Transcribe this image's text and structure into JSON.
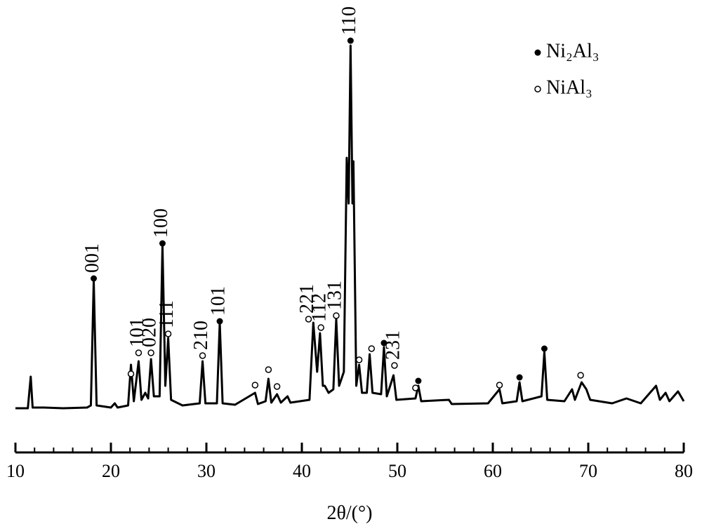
{
  "chart_data": {
    "type": "line",
    "xlabel": "2θ/(°)",
    "color": "#000000",
    "xlim": [
      10,
      80
    ],
    "xticks": [
      10,
      20,
      30,
      40,
      50,
      60,
      70,
      80
    ],
    "xminorticks": [
      12,
      14,
      16,
      18,
      22,
      24,
      26,
      28,
      32,
      34,
      36,
      38,
      42,
      44,
      46,
      48,
      52,
      54,
      56,
      58,
      62,
      64,
      66,
      68,
      72,
      74,
      76,
      78
    ],
    "ylim": [
      0,
      560
    ],
    "legend": "upper right",
    "x": [
      10.0,
      11.3,
      11.6,
      11.8,
      13,
      15,
      17.5,
      17.9,
      18.2,
      18.5,
      20,
      20.4,
      20.7,
      21.8,
      22.1,
      22.4,
      22.9,
      23.2,
      23.6,
      23.9,
      24.2,
      24.5,
      25.1,
      25.4,
      25.7,
      26.0,
      26.3,
      27.5,
      29.3,
      29.6,
      29.9,
      31.1,
      31.4,
      31.7,
      33,
      35.1,
      35.4,
      36.2,
      36.5,
      36.8,
      37.4,
      37.8,
      38.5,
      38.8,
      40.8,
      41.2,
      41.6,
      41.9,
      42.2,
      42.4,
      42.8,
      43.3,
      43.6,
      43.9,
      44.4,
      44.7,
      44.9,
      45.1,
      45.3,
      45.4,
      45.7,
      46.0,
      46.3,
      46.8,
      47.1,
      47.4,
      48.3,
      48.6,
      48.9,
      49.6,
      49.9,
      51.9,
      52.2,
      52.5,
      55.4,
      55.7,
      59.5,
      60.7,
      61,
      62.5,
      62.8,
      63.1,
      65.1,
      65.4,
      65.7,
      67.5,
      68.3,
      68.6,
      69.3,
      69.8,
      70.2,
      72.5,
      74,
      75.5,
      77.1,
      77.5,
      78.1,
      78.5,
      79.4,
      80.0
    ],
    "values": [
      8,
      8,
      53,
      9,
      9,
      8,
      9,
      12,
      190,
      12,
      9,
      15,
      9,
      12,
      70,
      18,
      75,
      20,
      30,
      22,
      78,
      25,
      25,
      240,
      40,
      108,
      20,
      12,
      15,
      75,
      15,
      15,
      130,
      15,
      13,
      30,
      14,
      18,
      50,
      16,
      28,
      16,
      25,
      16,
      20,
      130,
      60,
      115,
      40,
      40,
      30,
      35,
      135,
      40,
      60,
      365,
      300,
      525,
      300,
      360,
      40,
      70,
      30,
      30,
      85,
      30,
      28,
      95,
      25,
      55,
      20,
      22,
      40,
      18,
      20,
      14,
      15,
      35,
      15,
      18,
      45,
      18,
      25,
      88,
      20,
      18,
      35,
      20,
      45,
      35,
      20,
      15,
      22,
      15,
      40,
      20,
      30,
      18,
      32,
      18
    ],
    "phases": [
      {
        "name": "Ni₂Al₃",
        "marker": "filled",
        "peaks": [
          {
            "x": 18.2,
            "y": 193,
            "label": "001"
          },
          {
            "x": 25.4,
            "y": 243,
            "label": "100"
          },
          {
            "x": 31.4,
            "y": 132,
            "label": "101"
          },
          {
            "x": 45.1,
            "y": 532,
            "label": "110"
          },
          {
            "x": 48.6,
            "y": 101
          },
          {
            "x": 52.2,
            "y": 47
          },
          {
            "x": 62.8,
            "y": 52
          },
          {
            "x": 65.4,
            "y": 93
          }
        ]
      },
      {
        "name": "NiAl₃",
        "marker": "open",
        "peaks": [
          {
            "x": 22.1,
            "y": 57
          },
          {
            "x": 22.9,
            "y": 87,
            "label": "101"
          },
          {
            "x": 24.2,
            "y": 87,
            "label": "020"
          },
          {
            "x": 26.0,
            "y": 114,
            "label": "111"
          },
          {
            "x": 29.6,
            "y": 83,
            "label": "210"
          },
          {
            "x": 35.1,
            "y": 41
          },
          {
            "x": 36.5,
            "y": 63
          },
          {
            "x": 37.4,
            "y": 39
          },
          {
            "x": 40.7,
            "y": 135,
            "label": "221"
          },
          {
            "x": 42.0,
            "y": 123,
            "label": "112"
          },
          {
            "x": 43.6,
            "y": 140,
            "label": "131"
          },
          {
            "x": 46.0,
            "y": 77
          },
          {
            "x": 47.3,
            "y": 93
          },
          {
            "x": 49.7,
            "y": 69,
            "label": "231"
          },
          {
            "x": 51.9,
            "y": 37
          },
          {
            "x": 60.7,
            "y": 41
          },
          {
            "x": 69.2,
            "y": 55
          }
        ]
      }
    ]
  }
}
